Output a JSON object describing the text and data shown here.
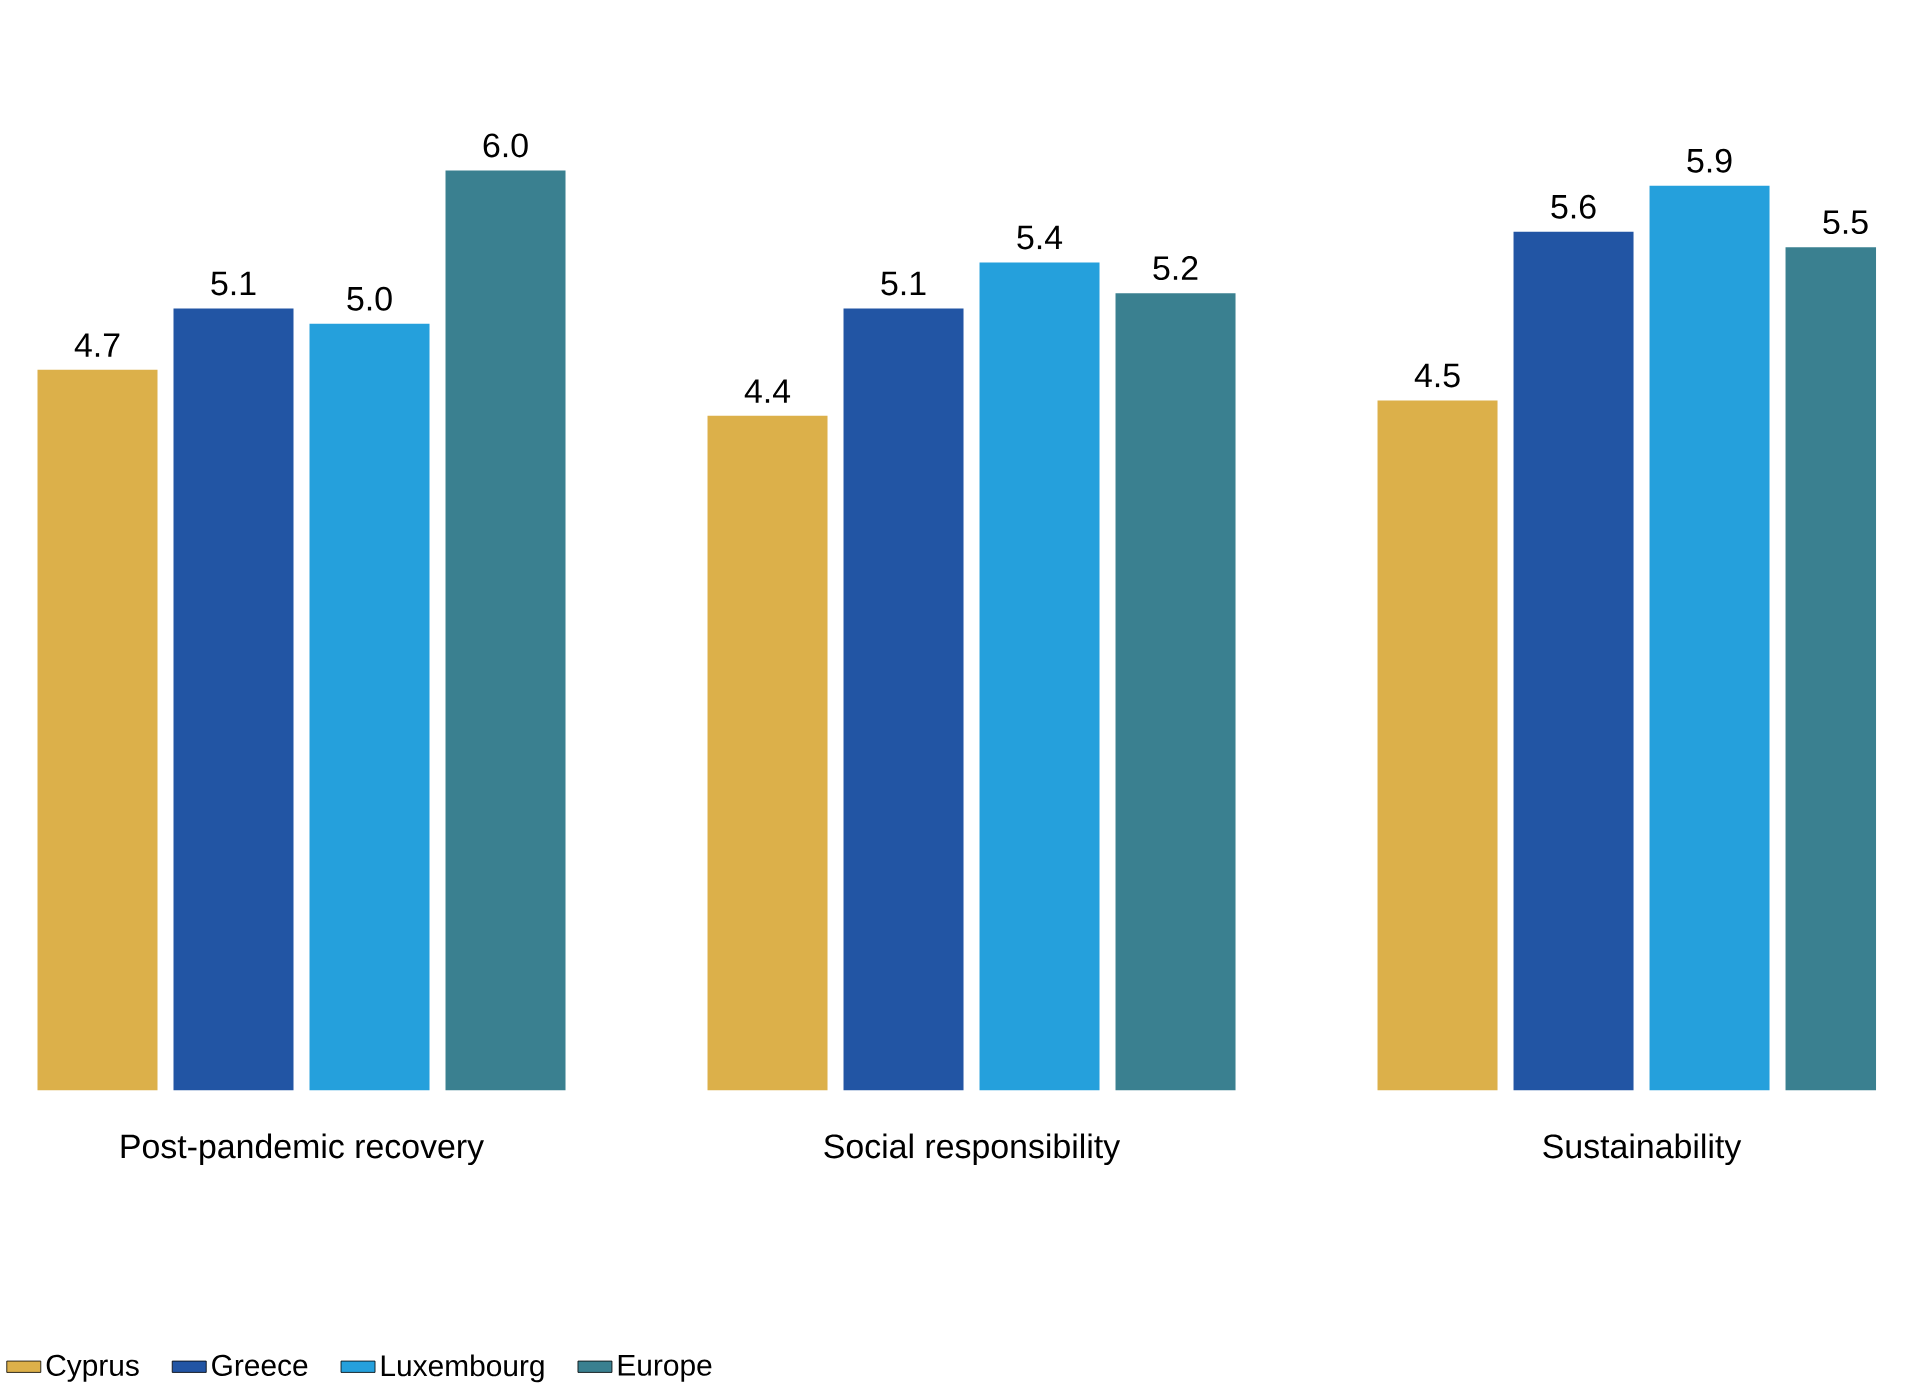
{
  "chart_data": {
    "type": "bar",
    "categories": [
      "Post-pandemic recovery",
      "Social responsibility",
      "Sustainability"
    ],
    "series": [
      {
        "name": "Cyprus",
        "color": "#dcb04a",
        "values": [
          4.7,
          4.4,
          4.5
        ],
        "value_labels": [
          "4.7",
          "4.4",
          "4.5"
        ]
      },
      {
        "name": "Greece",
        "color": "#2255a4",
        "values": [
          5.1,
          5.1,
          5.6
        ],
        "value_labels": [
          "5.1",
          "5.1",
          "5.6"
        ]
      },
      {
        "name": "Luxembourg",
        "color": "#25a0dc",
        "values": [
          5.0,
          5.4,
          5.9
        ],
        "value_labels": [
          "5.0",
          "5.4",
          "5.9"
        ]
      },
      {
        "name": "Europe",
        "color": "#3a8090",
        "values": [
          6.0,
          5.2,
          5.5
        ],
        "value_labels": [
          "6.0",
          "5.2",
          "5.5"
        ]
      }
    ],
    "legend": "bottom",
    "grid": false
  }
}
